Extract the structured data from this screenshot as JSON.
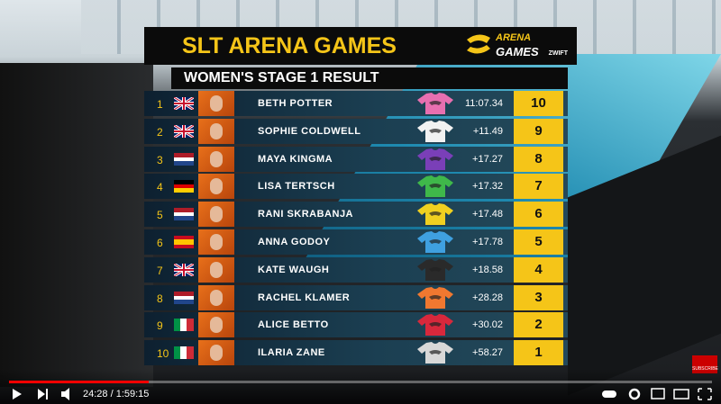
{
  "header": {
    "title": "SLT ARENA GAMES",
    "subtitle": "WOMEN'S STAGE 1 RESULT",
    "logo_top": "ARENA",
    "logo_bottom": "GAMES",
    "sponsor": "ZWIFT"
  },
  "table": {
    "rows": [
      {
        "position": "1",
        "name": "BETH POTTER",
        "time": "11:07.34",
        "points": "10",
        "jersey_color": "#e86fb0"
      },
      {
        "position": "2",
        "name": "SOPHIE COLDWELL",
        "time": "+11.49",
        "points": "9",
        "jersey_color": "#f2f2f2"
      },
      {
        "position": "3",
        "name": "MAYA KINGMA",
        "time": "+17.27",
        "points": "8",
        "jersey_color": "#7a3fb8"
      },
      {
        "position": "4",
        "name": "LISA TERTSCH",
        "time": "+17.32",
        "points": "7",
        "jersey_color": "#3fb84a"
      },
      {
        "position": "5",
        "name": "RANI SKRABANJA",
        "time": "+17.48",
        "points": "6",
        "jersey_color": "#f0d020"
      },
      {
        "position": "6",
        "name": "ANNA GODOY",
        "time": "+17.78",
        "points": "5",
        "jersey_color": "#3fa0e0"
      },
      {
        "position": "7",
        "name": "KATE WAUGH",
        "time": "+18.58",
        "points": "4",
        "jersey_color": "#2a2a2a"
      },
      {
        "position": "8",
        "name": "RACHEL KLAMER",
        "time": "+28.28",
        "points": "3",
        "jersey_color": "#f07830"
      },
      {
        "position": "9",
        "name": "ALICE BETTO",
        "time": "+30.02",
        "points": "2",
        "jersey_color": "#d8283c"
      },
      {
        "position": "10",
        "name": "ILARIA ZANE",
        "time": "+58.27",
        "points": "1",
        "jersey_color": "#d8d8d8"
      }
    ]
  },
  "player": {
    "time": "24:28 / 1:59:15",
    "subscribe": "SUBSCRIBE"
  }
}
